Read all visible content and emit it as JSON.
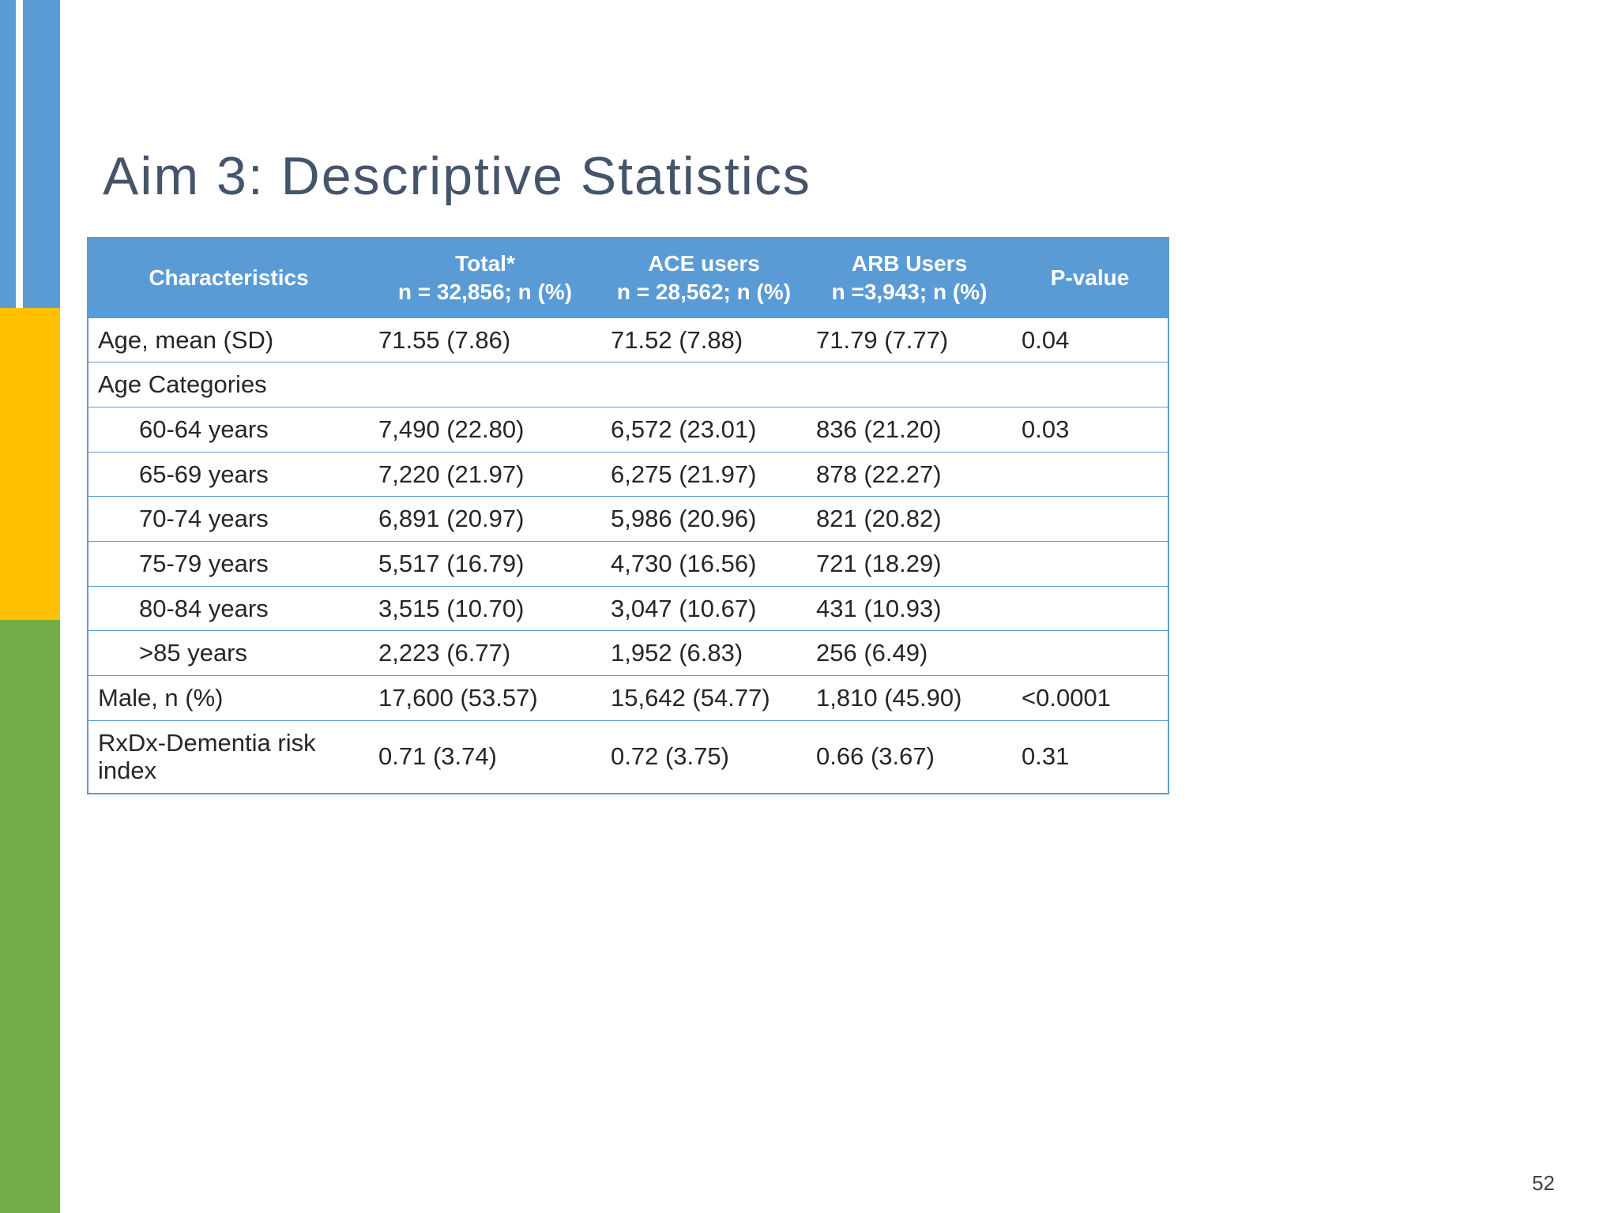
{
  "slide": {
    "title": "Aim 3: Descriptive Statistics",
    "page_number": "52"
  },
  "theme": {
    "header_bg": "#5B9BD5",
    "table_border": "#5B9BD5",
    "title_color": "#44546A",
    "sidebar_blue": "#5B9BD5",
    "sidebar_yellow": "#FFC000",
    "sidebar_green": "#70AD47"
  },
  "table": {
    "columns": [
      {
        "key": "characteristic",
        "label": "Characteristics",
        "sub": ""
      },
      {
        "key": "total",
        "label": "Total*",
        "sub": "n = 32,856; n (%)"
      },
      {
        "key": "ace",
        "label": "ACE users",
        "sub": "n = 28,562; n (%)"
      },
      {
        "key": "arb",
        "label": "ARB Users",
        "sub": "n =3,943; n (%)"
      },
      {
        "key": "p",
        "label": "P-value",
        "sub": ""
      }
    ],
    "rows": [
      {
        "characteristic": "Age, mean  (SD)",
        "indent": false,
        "total": "71.55 (7.86)",
        "ace": "71.52 (7.88)",
        "arb": "71.79 (7.77)",
        "p": "0.04"
      },
      {
        "characteristic": "Age Categories",
        "indent": false,
        "total": "",
        "ace": "",
        "arb": "",
        "p": ""
      },
      {
        "characteristic": "60-64 years",
        "indent": true,
        "total": "7,490 (22.80)",
        "ace": "6,572 (23.01)",
        "arb": "836 (21.20)",
        "p": "0.03"
      },
      {
        "characteristic": "65-69 years",
        "indent": true,
        "total": "7,220 (21.97)",
        "ace": "6,275 (21.97)",
        "arb": "878 (22.27)",
        "p": ""
      },
      {
        "characteristic": "70-74 years",
        "indent": true,
        "total": "6,891 (20.97)",
        "ace": "5,986 (20.96)",
        "arb": "821 (20.82)",
        "p": ""
      },
      {
        "characteristic": "75-79 years",
        "indent": true,
        "total": "5,517 (16.79)",
        "ace": "4,730 (16.56)",
        "arb": "721 (18.29)",
        "p": ""
      },
      {
        "characteristic": "80-84 years",
        "indent": true,
        "total": "3,515 (10.70)",
        "ace": "3,047 (10.67)",
        "arb": "431 (10.93)",
        "p": ""
      },
      {
        "characteristic": ">85 years",
        "indent": true,
        "total": "2,223 (6.77)",
        "ace": "1,952 (6.83)",
        "arb": "256 (6.49)",
        "p": ""
      },
      {
        "characteristic": "Male, n (%)",
        "indent": false,
        "total": "17,600 (53.57)",
        "ace": "15,642 (54.77)",
        "arb": "1,810 (45.90)",
        "p": "<0.0001"
      },
      {
        "characteristic": "RxDx-Dementia risk index",
        "indent": false,
        "total": "0.71 (3.74)",
        "ace": "0.72 (3.75)",
        "arb": "0.66 (3.67)",
        "p": "0.31"
      }
    ]
  }
}
